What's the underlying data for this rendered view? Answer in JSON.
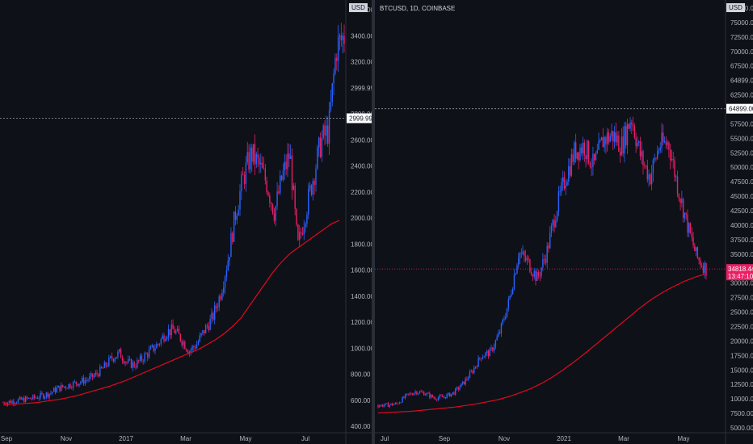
{
  "colors": {
    "background": "#0f1118",
    "up": "#2962ff",
    "down": "#e91e63",
    "ma": "#e00a1e",
    "grid": "#1e222d",
    "text": "#b2b5be",
    "crosshair": "#9598a1",
    "price_line_red": "#e91e63"
  },
  "left_chart": {
    "currency": "USD",
    "y_ticks": [
      "3600.00",
      "3400.00",
      "3200.00",
      "2999.99",
      "2800.00",
      "2600.00",
      "2400.00",
      "2200.00",
      "2000.00",
      "1800.00",
      "1600.00",
      "1400.00",
      "1200.00",
      "1000.00",
      "800.00",
      "600.00",
      "400.00"
    ],
    "x_ticks": [
      "Sep",
      "Nov",
      "2017",
      "Mar",
      "May",
      "Jul"
    ],
    "marker_price": "2999.99"
  },
  "right_chart": {
    "title": "BTCUSD, 1D, COINBASE",
    "currency": "USD",
    "y_ticks": [
      "77500.00",
      "75000.00",
      "72500.00",
      "70000.00",
      "67500.00",
      "64899.00",
      "62500.00",
      "60000.00",
      "57500.00",
      "55000.00",
      "52500.00",
      "50000.00",
      "47500.00",
      "45000.00",
      "42500.00",
      "40000.00",
      "37500.00",
      "35000.00",
      "32500.00",
      "30000.00",
      "27500.00",
      "25000.00",
      "22500.00",
      "20000.00",
      "17500.00",
      "15000.00",
      "12500.00",
      "10000.00",
      "7500.00",
      "5000.00"
    ],
    "x_ticks": [
      "Jul",
      "Sep",
      "Nov",
      "2021",
      "Mar",
      "May"
    ],
    "marker_price": "64899.00",
    "last_price": "34818.44",
    "countdown": "13:47:10"
  },
  "chart_data": [
    {
      "type": "candlestick",
      "title": "",
      "ylim": [
        400,
        3800
      ],
      "x_labels": [
        "Sep",
        "Nov",
        "2017",
        "Mar",
        "May",
        "Jul"
      ],
      "price_series": [
        580,
        590,
        600,
        610,
        620,
        640,
        660,
        700,
        720,
        740,
        760,
        780,
        820,
        880,
        960,
        1000,
        920,
        900,
        960,
        1020,
        1080,
        1180,
        1200,
        1120,
        1020,
        1080,
        1200,
        1300,
        1500,
        1800,
        2200,
        2500,
        2700,
        2600,
        2450,
        2200,
        2500,
        2700,
        1900,
        2200,
        2500,
        2800,
        2900,
        3600,
        3700
      ],
      "ma_series": [
        560,
        565,
        570,
        575,
        580,
        590,
        600,
        610,
        625,
        640,
        660,
        680,
        700,
        720,
        745,
        770,
        800,
        830,
        860,
        890,
        920,
        950,
        980,
        1010,
        1040,
        1080,
        1120,
        1170,
        1230,
        1300,
        1400,
        1500,
        1600,
        1700,
        1780,
        1850,
        1900,
        1950,
        2000,
        2050,
        2100,
        2130
      ],
      "marker_price": 2999.99
    },
    {
      "type": "candlestick",
      "title": "BTCUSD, 1D, COINBASE",
      "ylim": [
        5000,
        80000
      ],
      "x_labels": [
        "Jul",
        "Sep",
        "Nov",
        "2021",
        "Mar",
        "May"
      ],
      "price_series": [
        9200,
        9300,
        9500,
        11000,
        11800,
        11500,
        10600,
        10800,
        11500,
        13200,
        15500,
        18500,
        19200,
        23000,
        29000,
        38000,
        36000,
        33000,
        38000,
        46000,
        52000,
        57000,
        58000,
        54000,
        59000,
        60000,
        58000,
        63500,
        56000,
        52000,
        58000,
        58500,
        50000,
        43000,
        37000,
        34818
      ],
      "ma_series": [
        7800,
        7900,
        8000,
        8100,
        8300,
        8500,
        8700,
        8900,
        9200,
        9500,
        9900,
        10300,
        10900,
        11600,
        12400,
        13400,
        14600,
        16000,
        17500,
        19100,
        20800,
        22500,
        24200,
        25900,
        27600,
        29100,
        30400,
        31500,
        32500,
        33300,
        33900
      ],
      "marker_price": 64899.0,
      "last_price": 34818.44
    }
  ]
}
